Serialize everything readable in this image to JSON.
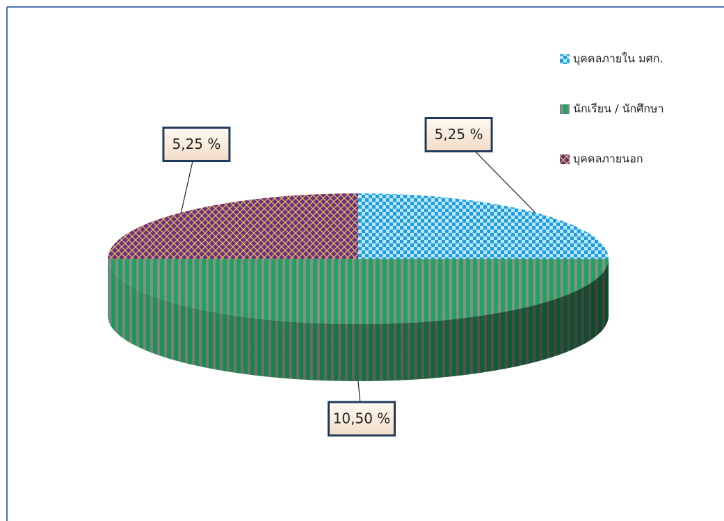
{
  "chart_data": {
    "type": "pie",
    "categories": [
      "บุคคลภายใน มศก.",
      "นักเรียน / นักศึกษา",
      "บุคคลภายนอก"
    ],
    "values": [
      5.25,
      10.5,
      5.25
    ],
    "value_labels": [
      "5,25 %",
      "10,50 %",
      "5,25 %"
    ],
    "colors": [
      "#1c9ee0",
      "#1ea45c",
      "#6b2d8f"
    ],
    "legend": "top-right"
  }
}
